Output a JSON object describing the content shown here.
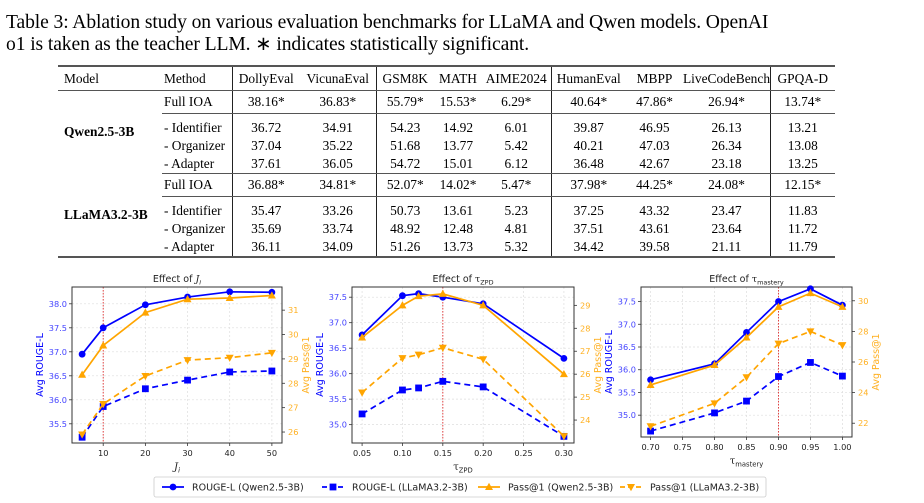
{
  "caption": {
    "line1": "Table 3: Ablation study on various evaluation benchmarks for LLaMA and Qwen models. OpenAI",
    "line2": "o1 is taken as the teacher LLM. ∗ indicates statistically significant."
  },
  "table": {
    "headers": [
      "Model",
      "Method",
      "DollyEval",
      "VicunaEval",
      "GSM8K",
      "MATH",
      "AIME2024",
      "HumanEval",
      "MBPP",
      "LiveCodeBench",
      "GPQA-D"
    ],
    "groups": [
      {
        "model": "Qwen2.5-3B",
        "rows": [
          {
            "method": "Full IOA",
            "values": [
              "38.16*",
              "36.83*",
              "55.79*",
              "15.53*",
              "6.29*",
              "40.64*",
              "47.86*",
              "26.94*",
              "13.74*"
            ]
          },
          {
            "method": "- Identifier",
            "values": [
              "36.72",
              "34.91",
              "54.23",
              "14.92",
              "6.01",
              "39.87",
              "46.95",
              "26.13",
              "13.21"
            ]
          },
          {
            "method": "- Organizer",
            "values": [
              "37.04",
              "35.22",
              "51.68",
              "13.77",
              "5.42",
              "40.21",
              "47.03",
              "26.34",
              "13.08"
            ]
          },
          {
            "method": "- Adapter",
            "values": [
              "37.61",
              "36.05",
              "54.72",
              "15.01",
              "6.12",
              "36.48",
              "42.67",
              "23.18",
              "13.25"
            ]
          }
        ]
      },
      {
        "model": "LLaMA3.2-3B",
        "rows": [
          {
            "method": "Full IOA",
            "values": [
              "36.88*",
              "34.81*",
              "52.07*",
              "14.02*",
              "5.47*",
              "37.98*",
              "44.25*",
              "24.08*",
              "12.15*"
            ]
          },
          {
            "method": "- Identifier",
            "values": [
              "35.47",
              "33.26",
              "50.73",
              "13.61",
              "5.23",
              "37.25",
              "43.32",
              "23.47",
              "11.83"
            ]
          },
          {
            "method": "- Organizer",
            "values": [
              "35.69",
              "33.74",
              "48.92",
              "12.48",
              "4.81",
              "37.51",
              "43.61",
              "23.64",
              "11.72"
            ]
          },
          {
            "method": "- Adapter",
            "values": [
              "36.11",
              "34.09",
              "51.26",
              "13.73",
              "5.32",
              "34.42",
              "39.58",
              "21.11",
              "11.79"
            ]
          }
        ]
      }
    ]
  },
  "colors": {
    "rouge": "#0000ff",
    "pass": "#ffa500",
    "left_axis_text": "#4444ff",
    "right_axis_text": "#ffb020",
    "vline": "#e03030",
    "grid": "#dddddd"
  },
  "legend": [
    {
      "label": "ROUGE-L (Qwen2.5-3B)",
      "series": "rouge_qwen"
    },
    {
      "label": "ROUGE-L (LLaMA3.2-3B)",
      "series": "rouge_llama"
    },
    {
      "label": "Pass@1 (Qwen2.5-3B)",
      "series": "pass_qwen"
    },
    {
      "label": "Pass@1 (LLaMA3.2-3B)",
      "series": "pass_llama"
    }
  ],
  "chart_data": [
    {
      "type": "line",
      "title": "Effect of J_i",
      "title_main": "Effect of ",
      "title_symbol": "J",
      "title_sub": "i",
      "xlabel_symbol": "J",
      "xlabel_sub": "i",
      "ylabel": "Avg ROUGE-L",
      "y2label": "Avg Pass@1",
      "x": [
        5,
        10,
        20,
        30,
        40,
        50
      ],
      "xlim": [
        2.6,
        52.4
      ],
      "xticks": [
        10,
        20,
        30,
        40,
        50
      ],
      "xtick_labels": [
        "10",
        "20",
        "30",
        "40",
        "50"
      ],
      "ylim": [
        35.1,
        38.35
      ],
      "yticks": [
        35.5,
        36.0,
        36.5,
        37.0,
        37.5,
        38.0
      ],
      "ytick_labels": [
        "35.5",
        "36.0",
        "36.5",
        "37.0",
        "37.5",
        "38.0"
      ],
      "y2lim": [
        25.55,
        31.95
      ],
      "y2ticks": [
        26,
        27,
        28,
        29,
        30,
        31
      ],
      "y2tick_labels": [
        "26",
        "27",
        "28",
        "29",
        "30",
        "31"
      ],
      "vline_x": 10,
      "grid": true,
      "series": [
        {
          "name": "ROUGE-L (Qwen2.5-3B)",
          "key": "rouge_qwen",
          "axis": "left",
          "values": [
            36.95,
            37.5,
            37.98,
            38.14,
            38.25,
            38.24
          ]
        },
        {
          "name": "ROUGE-L (LLaMA3.2-3B)",
          "key": "rouge_llama",
          "axis": "left",
          "values": [
            35.22,
            35.86,
            36.23,
            36.41,
            36.58,
            36.6
          ]
        },
        {
          "name": "Pass@1 (Qwen2.5-3B)",
          "key": "pass_qwen",
          "axis": "right",
          "values": [
            28.35,
            29.55,
            30.9,
            31.45,
            31.5,
            31.6
          ]
        },
        {
          "name": "Pass@1 (LLaMA3.2-3B)",
          "key": "pass_llama",
          "axis": "right",
          "values": [
            25.9,
            27.15,
            28.3,
            28.95,
            29.05,
            29.25
          ]
        }
      ]
    },
    {
      "type": "line",
      "title": "Effect of τ_ZPD",
      "title_main": "Effect of ",
      "title_symbol": "τ",
      "title_sub": "ZPD",
      "xlabel_symbol": "τ",
      "xlabel_sub": "ZPD",
      "ylabel": "Avg ROUGE-L",
      "y2label": "Avg Pass@1",
      "x": [
        0.05,
        0.1,
        0.12,
        0.15,
        0.2,
        0.3
      ],
      "xlim": [
        0.0375,
        0.3125
      ],
      "xticks": [
        0.05,
        0.1,
        0.15,
        0.2,
        0.25,
        0.3
      ],
      "xtick_labels": [
        "0.05",
        "0.10",
        "0.15",
        "0.20",
        "0.25",
        "0.30"
      ],
      "ylim": [
        34.64,
        37.7
      ],
      "yticks": [
        35.0,
        35.5,
        36.0,
        36.5,
        37.0,
        37.5
      ],
      "ytick_labels": [
        "35.0",
        "35.5",
        "36.0",
        "36.5",
        "37.0",
        "37.5"
      ],
      "y2lim": [
        23.0,
        29.8
      ],
      "y2ticks": [
        24,
        25,
        26,
        27,
        28,
        29
      ],
      "y2tick_labels": [
        "24",
        "25",
        "26",
        "27",
        "28",
        "29"
      ],
      "vline_x": 0.15,
      "grid": true,
      "series": [
        {
          "name": "ROUGE-L (Qwen2.5-3B)",
          "key": "rouge_qwen",
          "axis": "left",
          "values": [
            36.76,
            37.53,
            37.57,
            37.5,
            37.37,
            36.3
          ]
        },
        {
          "name": "ROUGE-L (LLaMA3.2-3B)",
          "key": "rouge_llama",
          "axis": "left",
          "values": [
            35.21,
            35.68,
            35.72,
            35.85,
            35.74,
            34.77
          ]
        },
        {
          "name": "Pass@1 (Qwen2.5-3B)",
          "key": "pass_qwen",
          "axis": "right",
          "values": [
            27.6,
            29.0,
            29.4,
            29.5,
            29.0,
            26.0
          ]
        },
        {
          "name": "Pass@1 (LLaMA3.2-3B)",
          "key": "pass_llama",
          "axis": "right",
          "values": [
            25.2,
            26.7,
            26.85,
            27.15,
            26.65,
            23.3
          ]
        }
      ]
    },
    {
      "type": "line",
      "title": "Effect of τ_mastery",
      "title_main": "Effect of ",
      "title_symbol": "τ",
      "title_sub": "mastery",
      "xlabel_symbol": "τ",
      "xlabel_sub": "mastery",
      "ylabel": "Avg ROUGE-L",
      "y2label": "Avg Pass@1",
      "x": [
        0.7,
        0.8,
        0.85,
        0.9,
        0.95,
        1.0
      ],
      "xlim": [
        0.685,
        1.015
      ],
      "xticks": [
        0.7,
        0.75,
        0.8,
        0.85,
        0.9,
        0.95,
        1.0
      ],
      "xtick_labels": [
        "0.70",
        "0.75",
        "0.80",
        "0.85",
        "0.90",
        "0.95",
        "1.00"
      ],
      "ylim": [
        34.52,
        37.82
      ],
      "yticks": [
        35.0,
        35.5,
        36.0,
        36.5,
        37.0,
        37.5
      ],
      "ytick_labels": [
        "35.0",
        "35.5",
        "36.0",
        "36.5",
        "37.0",
        "37.5"
      ],
      "y2lim": [
        21.1,
        30.9
      ],
      "y2ticks": [
        22,
        24,
        26,
        28,
        30
      ],
      "y2tick_labels": [
        "22",
        "24",
        "26",
        "28",
        "30"
      ],
      "vline_x": 0.9,
      "grid": true,
      "series": [
        {
          "name": "ROUGE-L (Qwen2.5-3B)",
          "key": "rouge_qwen",
          "axis": "left",
          "values": [
            35.78,
            36.13,
            36.82,
            37.5,
            37.78,
            37.42
          ]
        },
        {
          "name": "ROUGE-L (LLaMA3.2-3B)",
          "key": "rouge_llama",
          "axis": "left",
          "values": [
            34.65,
            35.05,
            35.31,
            35.85,
            36.16,
            35.86
          ]
        },
        {
          "name": "Pass@1 (Qwen2.5-3B)",
          "key": "pass_qwen",
          "axis": "right",
          "values": [
            24.5,
            25.8,
            27.6,
            29.6,
            30.5,
            29.6
          ]
        },
        {
          "name": "Pass@1 (LLaMA3.2-3B)",
          "key": "pass_llama",
          "axis": "right",
          "values": [
            21.8,
            23.3,
            25.0,
            27.2,
            28.0,
            27.1
          ]
        }
      ]
    }
  ]
}
